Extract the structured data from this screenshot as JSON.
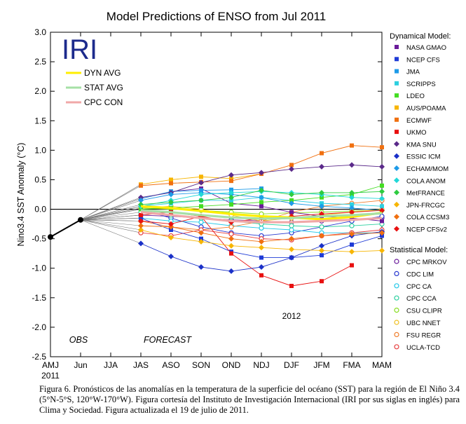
{
  "chart_data": {
    "type": "line",
    "title": "Model Predictions of ENSO from Jul 2011",
    "ylabel": "Nino3.4 SST Anomaly (°C)",
    "xlabel": "",
    "ylim": [
      -2.5,
      3.0
    ],
    "yticks": [
      3.0,
      2.5,
      2.0,
      1.5,
      1.0,
      0.5,
      0.0,
      -0.5,
      -1.0,
      -1.5,
      -2.0,
      -2.5
    ],
    "categories": [
      "AMJ",
      "Jun",
      "JJA",
      "JAS",
      "ASO",
      "SON",
      "OND",
      "NDJ",
      "DJF",
      "JFM",
      "FMA",
      "MAM"
    ],
    "year_labels": [
      "2011",
      "2012"
    ],
    "obs_label": "OBS",
    "forecast_label": "FORECAST",
    "logo": "IRI",
    "observed": [
      -0.47,
      -0.18
    ],
    "averages": [
      {
        "name": "DYN AVG",
        "color": "#ffee00",
        "values": [
          0.05,
          0.02,
          -0.03,
          -0.08,
          -0.12,
          -0.14,
          -0.17,
          -0.13,
          -0.06
        ]
      },
      {
        "name": "STAT AVG",
        "color": "#a6e0a6",
        "values": [
          -0.02,
          -0.05,
          -0.1,
          -0.14,
          -0.16,
          -0.15,
          -0.12,
          -0.1,
          -0.07
        ]
      },
      {
        "name": "CPC CON",
        "color": "#f0a8a8",
        "values": [
          -0.05,
          -0.1,
          -0.15,
          -0.2,
          -0.22,
          -0.22,
          -0.2,
          -0.18,
          -0.15
        ]
      }
    ],
    "dynamical_title": "Dynamical Model:",
    "dynamical": [
      {
        "name": "NASA GMAO",
        "color": "#6a1b9a",
        "marker": "square",
        "values": [
          0.18,
          0.3,
          0.35,
          0.1,
          0.05,
          -0.05,
          -0.12,
          -0.15,
          -0.2
        ]
      },
      {
        "name": "NCEP CFS",
        "color": "#1f3bd6",
        "marker": "square",
        "values": [
          -0.15,
          -0.35,
          -0.5,
          -0.72,
          -0.82,
          -0.82,
          -0.78,
          -0.6,
          -0.45
        ]
      },
      {
        "name": "JMA",
        "color": "#1e9be8",
        "marker": "square",
        "values": [
          0.18,
          0.3,
          0.32,
          0.33,
          0.35,
          null,
          null,
          null,
          null
        ]
      },
      {
        "name": "SCRIPPS",
        "color": "#2ed0e0",
        "marker": "square",
        "values": [
          0.05,
          0.1,
          0.15,
          0.15,
          0.2,
          0.15,
          0.1,
          0.08,
          0.05
        ]
      },
      {
        "name": "LDEO",
        "color": "#44dd22",
        "marker": "square",
        "values": [
          0.0,
          0.02,
          0.05,
          0.08,
          0.12,
          0.15,
          0.2,
          0.25,
          0.4
        ]
      },
      {
        "name": "AUS/POAMA",
        "color": "#f7b500",
        "marker": "square",
        "values": [
          0.42,
          0.5,
          0.55,
          0.52,
          0.6,
          null,
          null,
          null,
          null
        ]
      },
      {
        "name": "ECMWF",
        "color": "#f07010",
        "marker": "square",
        "values": [
          0.4,
          0.44,
          0.46,
          0.48,
          0.6,
          0.75,
          0.95,
          1.08,
          1.05
        ]
      },
      {
        "name": "UKMO",
        "color": "#e81010",
        "marker": "square",
        "values": [
          -0.1,
          -0.05,
          -0.12,
          -0.75,
          -1.12,
          -1.3,
          -1.22,
          -0.95,
          null
        ]
      },
      {
        "name": "KMA SNU",
        "color": "#5b2a8a",
        "marker": "diamond",
        "values": [
          0.2,
          0.28,
          0.45,
          0.58,
          0.62,
          0.68,
          0.72,
          0.75,
          0.72
        ]
      },
      {
        "name": "ESSIC ICM",
        "color": "#1a30c8",
        "marker": "diamond",
        "values": [
          -0.58,
          -0.8,
          -0.98,
          -1.05,
          -0.98,
          -0.82,
          -0.62,
          -0.45,
          -0.38
        ]
      },
      {
        "name": "ECHAM/MOM",
        "color": "#1e9be8",
        "marker": "diamond",
        "values": [
          0.15,
          0.25,
          0.28,
          0.25,
          0.2,
          0.1,
          0.05,
          0.02,
          -0.02
        ]
      },
      {
        "name": "COLA ANOM",
        "color": "#22d8d8",
        "marker": "diamond",
        "values": [
          0.05,
          0.15,
          0.25,
          0.28,
          0.3,
          0.28,
          0.25,
          0.2,
          0.18
        ]
      },
      {
        "name": "MetFRANCE",
        "color": "#2ecc40",
        "marker": "diamond",
        "values": [
          0.08,
          0.12,
          0.15,
          0.2,
          0.32,
          0.25,
          0.28,
          0.28,
          0.3
        ]
      },
      {
        "name": "JPN-FRCGC",
        "color": "#f7b500",
        "marker": "diamond",
        "values": [
          -0.35,
          -0.48,
          -0.55,
          -0.62,
          -0.65,
          -0.68,
          -0.7,
          -0.72,
          -0.7
        ]
      },
      {
        "name": "COLA CCSM3",
        "color": "#f07010",
        "marker": "diamond",
        "values": [
          -0.28,
          -0.3,
          -0.4,
          -0.5,
          -0.55,
          -0.5,
          -0.45,
          -0.42,
          -0.4
        ]
      },
      {
        "name": "NCEP CFSv2",
        "color": "#e81010",
        "marker": "diamond",
        "values": [
          -0.2,
          -0.25,
          -0.12,
          -0.22,
          -0.15,
          -0.12,
          -0.08,
          -0.05,
          -0.02
        ]
      }
    ],
    "statistical_title": "Statistical Model:",
    "statistical": [
      {
        "name": "CPC MRKOV",
        "color": "#6a1b9a",
        "marker": "circle",
        "values": [
          -0.1,
          -0.12,
          -0.15,
          -0.18,
          -0.2,
          -0.22,
          -0.2,
          -0.18,
          -0.15
        ]
      },
      {
        "name": "CDC LIM",
        "color": "#2a3ad0",
        "marker": "circle",
        "values": [
          0.0,
          -0.15,
          -0.3,
          -0.4,
          -0.45,
          -0.4,
          -0.3,
          -0.2,
          -0.12
        ]
      },
      {
        "name": "CPC CA",
        "color": "#22c8e8",
        "marker": "circle",
        "values": [
          -0.15,
          -0.2,
          -0.22,
          -0.28,
          -0.32,
          -0.35,
          -0.4,
          -0.4,
          -0.4
        ]
      },
      {
        "name": "CPC CCA",
        "color": "#2ed0a0",
        "marker": "circle",
        "values": [
          -0.05,
          -0.1,
          -0.15,
          -0.2,
          -0.25,
          -0.28,
          -0.3,
          -0.28,
          -0.25
        ]
      },
      {
        "name": "CSU CLIPR",
        "color": "#88dd22",
        "marker": "circle",
        "values": [
          0.02,
          0.0,
          -0.02,
          -0.05,
          -0.08,
          -0.06,
          -0.05,
          -0.03,
          -0.02
        ]
      },
      {
        "name": "UBC NNET",
        "color": "#f0c020",
        "marker": "circle",
        "values": [
          0.02,
          0.05,
          0.0,
          -0.1,
          -0.2,
          -0.15,
          -0.1,
          -0.05,
          0.0
        ]
      },
      {
        "name": "FSU REGR",
        "color": "#f08030",
        "marker": "circle",
        "values": [
          -0.2,
          -0.3,
          -0.35,
          -0.3,
          -0.2,
          -0.05,
          0.05,
          0.1,
          0.15
        ]
      },
      {
        "name": "UCLA-TCD",
        "color": "#e84040",
        "marker": "circle",
        "values": [
          -0.4,
          -0.45,
          -0.35,
          -0.42,
          -0.5,
          -0.52,
          -0.45,
          -0.4,
          -0.35
        ]
      }
    ]
  },
  "caption": "Figura 6. Pronósticos de las anomalías en la temperatura de la superficie del océano (SST) para la región de El Niño 3.4 (5°N-5°S, 120°W-170°W). Figura cortesía del Instituto de Investigación Internacional (IRI por sus siglas en inglés) para Clima y Sociedad. Figura actualizada el 19 de julio de 2011."
}
